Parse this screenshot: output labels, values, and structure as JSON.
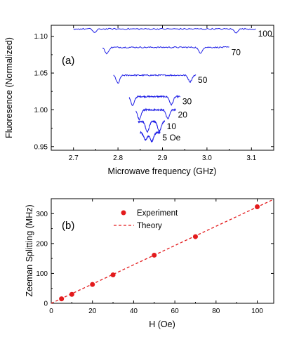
{
  "chart_data": [
    {
      "type": "line",
      "panel_label": "(a)",
      "xlabel": "Microwave frequency (GHz)",
      "ylabel": "Fluoresence (Normalized)",
      "xlim": [
        2.65,
        3.15
      ],
      "ylim": [
        0.945,
        1.115
      ],
      "xticks": [
        "2.7",
        "2.8",
        "2.9",
        "3.0",
        "3.1"
      ],
      "yticks": [
        "0.95",
        "1.00",
        "1.05",
        "1.10"
      ],
      "line_color": "#1f1fe6",
      "grid": false,
      "series": [
        {
          "name": "5 Oe",
          "baseline": 0.969,
          "x_start": 2.85,
          "x_end": 2.895,
          "dips": [
            [
              2.862,
              0.01
            ],
            [
              2.876,
              0.012
            ]
          ]
        },
        {
          "name": "10",
          "baseline": 0.984,
          "x_start": 2.845,
          "x_end": 2.905,
          "dips": [
            [
              2.866,
              0.014
            ],
            [
              2.893,
              0.013
            ]
          ]
        },
        {
          "name": "20",
          "baseline": 1.0,
          "x_start": 2.84,
          "x_end": 2.93,
          "dips": [
            [
              2.848,
              0.013
            ],
            [
              2.912,
              0.012
            ]
          ]
        },
        {
          "name": "30",
          "baseline": 1.018,
          "x_start": 2.825,
          "x_end": 2.94,
          "dips": [
            [
              2.833,
              0.012
            ],
            [
              2.92,
              0.011
            ]
          ]
        },
        {
          "name": "50",
          "baseline": 1.047,
          "x_start": 2.79,
          "x_end": 2.975,
          "dips": [
            [
              2.8,
              0.011
            ],
            [
              2.962,
              0.009
            ]
          ]
        },
        {
          "name": "70",
          "baseline": 1.085,
          "x_start": 2.765,
          "x_end": 3.05,
          "dips": [
            [
              2.775,
              0.009
            ],
            [
              2.985,
              0.008
            ]
          ]
        },
        {
          "name": "100",
          "baseline": 1.11,
          "x_start": 2.7,
          "x_end": 3.11,
          "dips": [
            [
              2.748,
              0.005
            ],
            [
              3.065,
              0.005
            ]
          ]
        }
      ]
    },
    {
      "type": "scatter",
      "panel_label": "(b)",
      "xlabel": "H (Oe)",
      "ylabel": "Zeeman Splitting (MHz)",
      "xlim": [
        0,
        108
      ],
      "ylim": [
        0,
        350
      ],
      "xticks": [
        "0",
        "20",
        "40",
        "60",
        "80",
        "100"
      ],
      "yticks": [
        "0",
        "100",
        "200",
        "300"
      ],
      "legend_position": "top-left",
      "series": [
        {
          "name": "Experiment",
          "kind": "points",
          "color": "#e31a1c",
          "x": [
            5,
            10,
            20,
            30,
            50,
            70,
            100
          ],
          "y": [
            15,
            30,
            63,
            95,
            161,
            223,
            323
          ]
        },
        {
          "name": "Theory",
          "kind": "dashed-line",
          "color": "#e31a1c",
          "x": [
            0,
            108
          ],
          "y": [
            0,
            348
          ]
        }
      ]
    }
  ]
}
